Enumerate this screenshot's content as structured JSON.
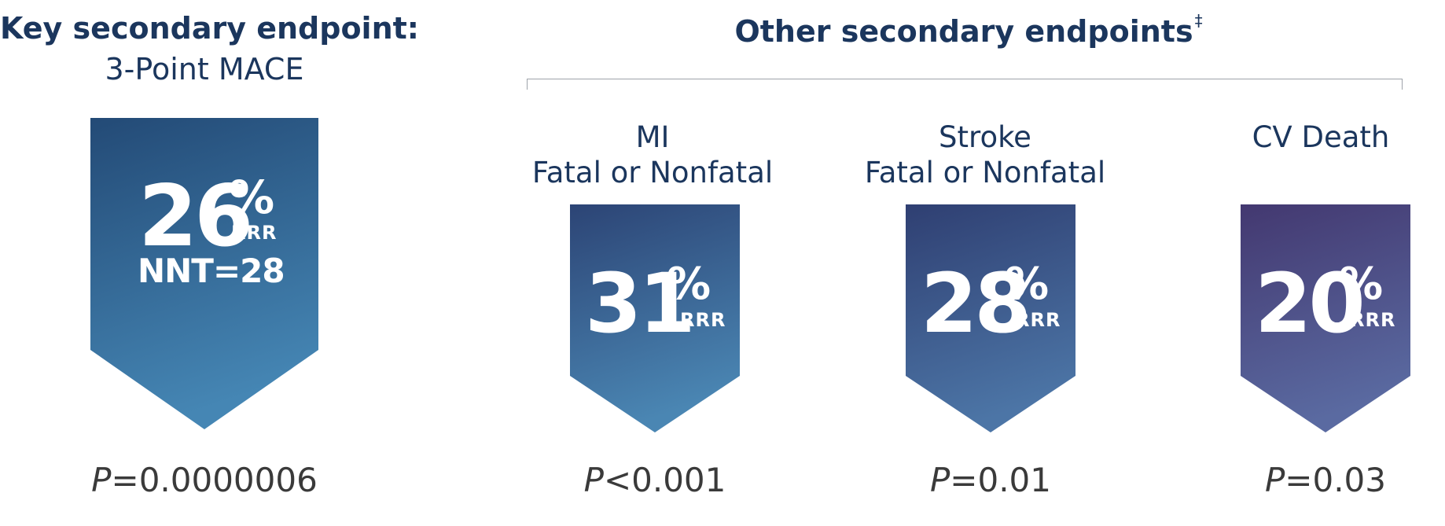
{
  "key": {
    "title": "Key secondary endpoint:",
    "subtitle": "3-Point MACE",
    "value": "26",
    "percent": "%",
    "unit": "RRR",
    "nnt": "NNT=28",
    "p_letter": "P",
    "p_rest": "=0.0000006"
  },
  "other": {
    "title": "Other secondary endpoints",
    "footnote_mark": "‡"
  },
  "endpoints": [
    {
      "label_line1": "MI",
      "label_line2": "Fatal or Nonfatal",
      "value": "31",
      "percent": "%",
      "unit": "RRR",
      "p_letter": "P",
      "p_rest": "<0.001"
    },
    {
      "label_line1": "Stroke",
      "label_line2": "Fatal or Nonfatal",
      "value": "28",
      "percent": "%",
      "unit": "RRR",
      "p_letter": "P",
      "p_rest": "=0.01"
    },
    {
      "label_line1": "CV Death",
      "label_line2": "",
      "value": "20",
      "percent": "%",
      "unit": "RRR",
      "p_letter": "P",
      "p_rest": "=0.03"
    }
  ],
  "colors": {
    "heading": "#1b365d",
    "pvalue": "#3a3a3a",
    "bracket": "#9ea3aa",
    "shape_key_top": "#234a76",
    "shape_key_bottom": "#4586b4",
    "shape_mi_top": "#2c4475",
    "shape_mi_bottom": "#4a86b3",
    "shape_stroke_top": "#2f3f72",
    "shape_stroke_bottom": "#4c75a6",
    "shape_cv_top": "#433870",
    "shape_cv_bottom": "#5a6aa1"
  }
}
